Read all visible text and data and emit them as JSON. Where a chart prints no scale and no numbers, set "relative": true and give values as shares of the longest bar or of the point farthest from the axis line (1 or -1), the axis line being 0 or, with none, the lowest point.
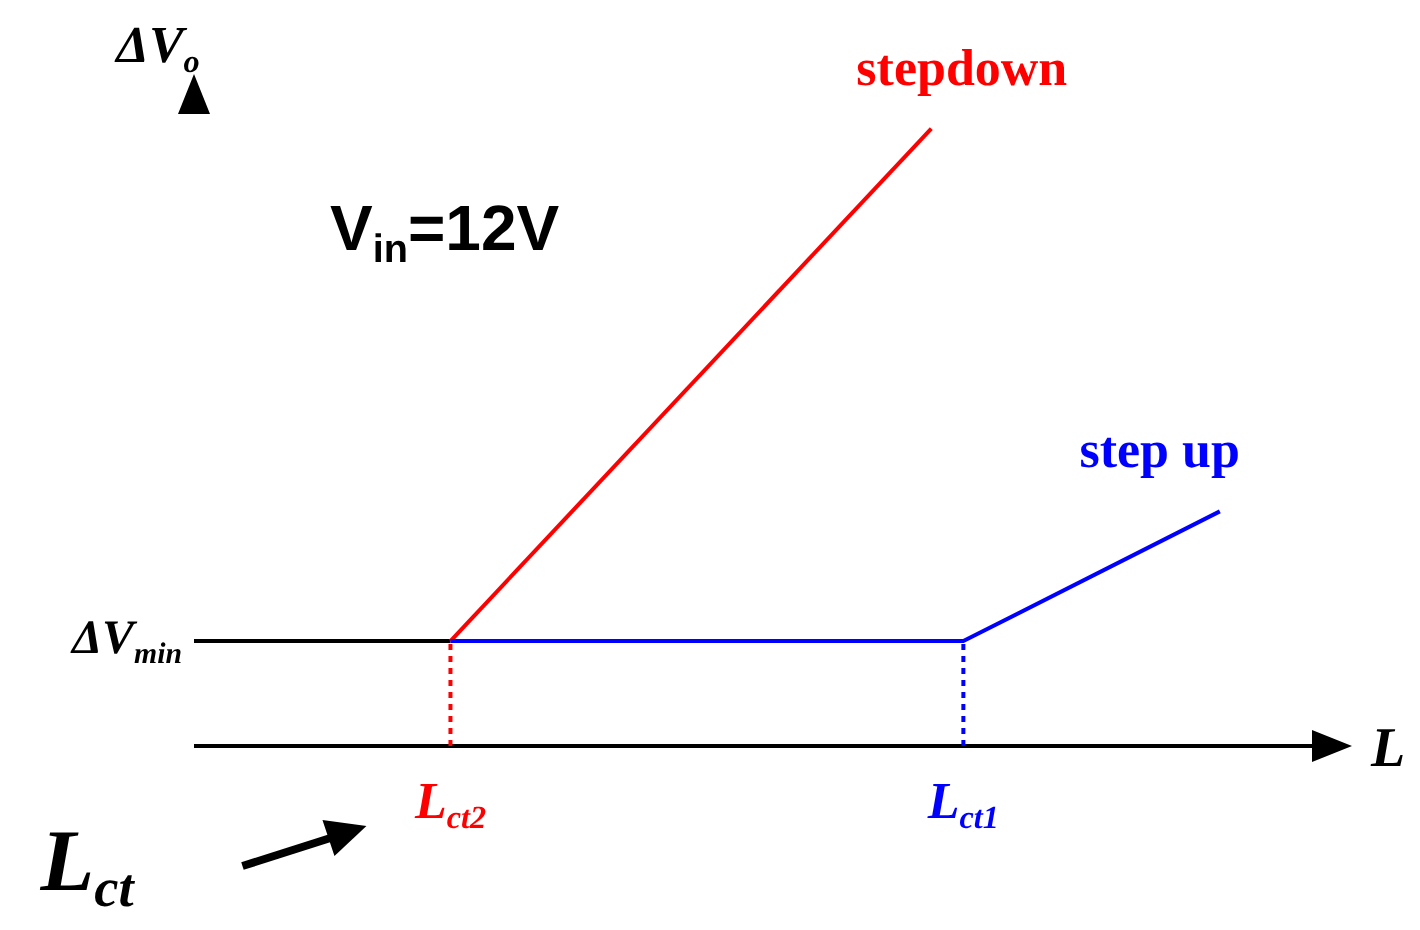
{
  "chart_data": {
    "type": "line",
    "relative": true,
    "xlabel": "L",
    "ylabel": "ΔV$_{o}$",
    "categories": [
      null,
      null,
      null,
      null,
      null,
      null,
      null,
      null,
      "L$_{ct2}$",
      null,
      null,
      null,
      null,
      null,
      null,
      null,
      null,
      null,
      null,
      null,
      null,
      null,
      null,
      null,
      "L$_{ct1}$",
      null,
      null,
      null,
      null,
      null,
      null,
      null,
      null,
      null,
      null,
      null
    ],
    "series": [
      {
        "color": "#000000",
        "values": [
          0.17,
          null,
          null,
          null,
          null,
          null,
          null,
          null,
          0.17,
          null,
          null,
          null,
          null,
          null,
          null,
          null,
          null,
          null,
          null,
          null,
          null,
          null,
          null,
          null,
          null,
          null,
          null,
          null,
          null,
          null,
          null,
          null,
          null,
          null,
          null,
          null
        ]
      },
      {
        "name": "stepdown",
        "color": "#ff0000",
        "values": [
          null,
          null,
          null,
          null,
          null,
          null,
          null,
          null,
          0.17,
          null,
          null,
          null,
          null,
          null,
          null,
          null,
          null,
          null,
          null,
          null,
          null,
          null,
          null,
          1,
          null,
          null,
          null,
          null,
          null,
          null,
          null,
          null,
          null,
          null,
          null,
          null
        ]
      },
      {
        "name": "step up",
        "color": "#0000ff",
        "values": [
          null,
          null,
          null,
          null,
          null,
          null,
          null,
          null,
          0.17,
          null,
          null,
          null,
          null,
          null,
          null,
          null,
          null,
          null,
          null,
          null,
          null,
          null,
          null,
          null,
          0.17,
          null,
          null,
          null,
          null,
          null,
          null,
          null,
          0.38,
          null,
          null,
          null
        ]
      }
    ],
    "ref_lines": [
      {
        "axis": "x",
        "value": "L$_{ct2}$",
        "color": "#ff0000",
        "line_style": "dotted"
      },
      {
        "axis": "x",
        "value": "L$_{ct1}$",
        "color": "#0000ff",
        "line_style": "dotted"
      }
    ],
    "annotations": [
      "V$_{in}$=12V",
      "ΔV$_{min}$",
      "L$_{ct}$"
    ]
  }
}
